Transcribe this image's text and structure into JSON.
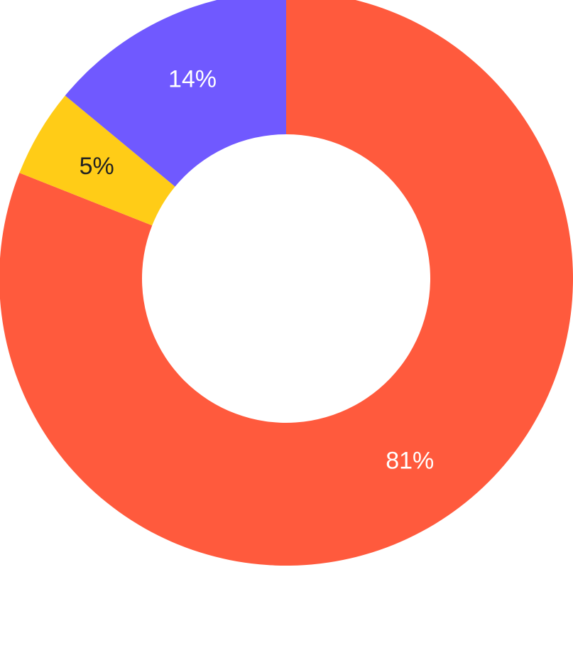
{
  "chart_data": {
    "type": "pie",
    "donut": true,
    "start": "top",
    "direction": "clockwise",
    "slices": [
      {
        "value": 81,
        "label": "81%",
        "color": "#FF5A3D",
        "label_color": "#FFFFFF"
      },
      {
        "value": 5,
        "label": "5%",
        "color": "#FFCC17",
        "label_color": "#222222"
      },
      {
        "value": 14,
        "label": "14%",
        "color": "#7059FF",
        "label_color": "#FFFFFF"
      }
    ]
  }
}
